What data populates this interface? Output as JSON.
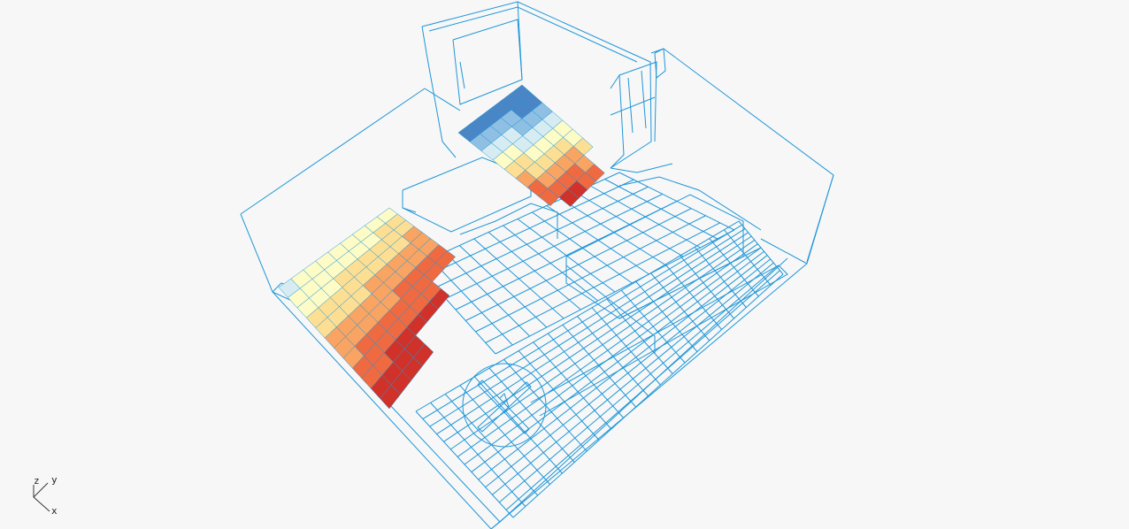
{
  "view": {
    "background": "#f7f7f7",
    "wire_color": "#1e96d8",
    "colormap": [
      "#4a86c6",
      "#8fc0e3",
      "#d6ecf2",
      "#fdfbc6",
      "#fddf94",
      "#f9a463",
      "#ef6a40",
      "#d03128",
      "#b0152e"
    ]
  },
  "axes": {
    "x_label": "x",
    "y_label": "y",
    "z_label": "z"
  }
}
